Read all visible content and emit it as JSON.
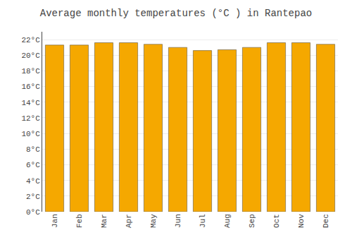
{
  "chart_data": {
    "type": "bar",
    "title": "Average monthly temperatures (°C ) in Rantepao",
    "categories": [
      "Jan",
      "Feb",
      "Mar",
      "Apr",
      "May",
      "Jun",
      "Jul",
      "Aug",
      "Sep",
      "Oct",
      "Nov",
      "Dec"
    ],
    "values": [
      21.3,
      21.3,
      21.6,
      21.6,
      21.4,
      21.0,
      20.6,
      20.7,
      21.0,
      21.6,
      21.6,
      21.4
    ],
    "color": "#F5A800",
    "ylim": [
      0,
      23
    ],
    "yticks": [
      {
        "value": 0,
        "label": "0°C"
      },
      {
        "value": 2,
        "label": "2°C"
      },
      {
        "value": 4,
        "label": "4°C"
      },
      {
        "value": 6,
        "label": "6°C"
      },
      {
        "value": 8,
        "label": "8°C"
      },
      {
        "value": 10,
        "label": "10°C"
      },
      {
        "value": 12,
        "label": "12°C"
      },
      {
        "value": 14,
        "label": "14°C"
      },
      {
        "value": 16,
        "label": "16°C"
      },
      {
        "value": 18,
        "label": "18°C"
      },
      {
        "value": 20,
        "label": "20°C"
      },
      {
        "value": 22,
        "label": "22°C"
      }
    ],
    "grid": true
  }
}
